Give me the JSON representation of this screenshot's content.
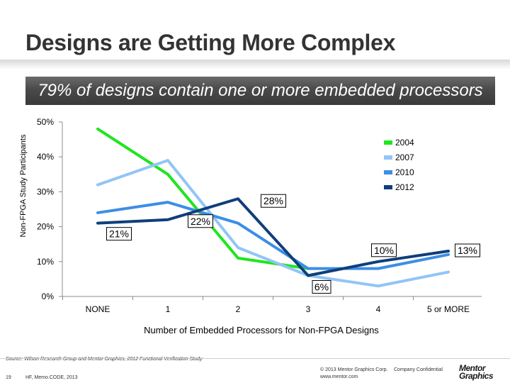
{
  "slide": {
    "title": "Designs are Getting More Complex",
    "banner": "79% of designs contain one or more embedded processors",
    "source": "Source: Wilson Research Group and Mentor Graphics, 2012 Functional Verification Study",
    "page_number": "19",
    "event": "HF, Memo.CODE, 2013",
    "copyright": "© 2013 Mentor Graphics Corp.",
    "confidential": "Company Confidential",
    "website": "www.mentor.com",
    "logo_line1": "Mentor",
    "logo_line2": "Graphics"
  },
  "chart_data": {
    "type": "line",
    "title": "",
    "xlabel": "Number of Embedded Processors for Non-FPGA Designs",
    "ylabel": "Non-FPGA Study Participants",
    "categories": [
      "NONE",
      "1",
      "2",
      "3",
      "4",
      "5 or MORE"
    ],
    "y_ticks": [
      "0%",
      "10%",
      "20%",
      "30%",
      "40%",
      "50%"
    ],
    "ylim": [
      0,
      50
    ],
    "legend_position": "top-right",
    "series": [
      {
        "name": "2004",
        "color": "#1ee61e",
        "values": [
          48,
          35,
          11,
          8,
          null,
          null
        ]
      },
      {
        "name": "2007",
        "color": "#92c5f5",
        "values": [
          32,
          39,
          14,
          6,
          3,
          7
        ]
      },
      {
        "name": "2010",
        "color": "#3c8ee6",
        "values": [
          24,
          27,
          21,
          8,
          8,
          12
        ]
      },
      {
        "name": "2012",
        "color": "#0f3f7a",
        "values": [
          21,
          22,
          28,
          6,
          10,
          13
        ]
      }
    ],
    "annotations": [
      {
        "text": "21%",
        "series": "2012",
        "index": 0
      },
      {
        "text": "22%",
        "series": "2012",
        "index": 1
      },
      {
        "text": "28%",
        "series": "2012",
        "index": 2
      },
      {
        "text": "6%",
        "series": "2012",
        "index": 3
      },
      {
        "text": "10%",
        "series": "2012",
        "index": 4
      },
      {
        "text": "13%",
        "series": "2012",
        "index": 5
      }
    ]
  }
}
